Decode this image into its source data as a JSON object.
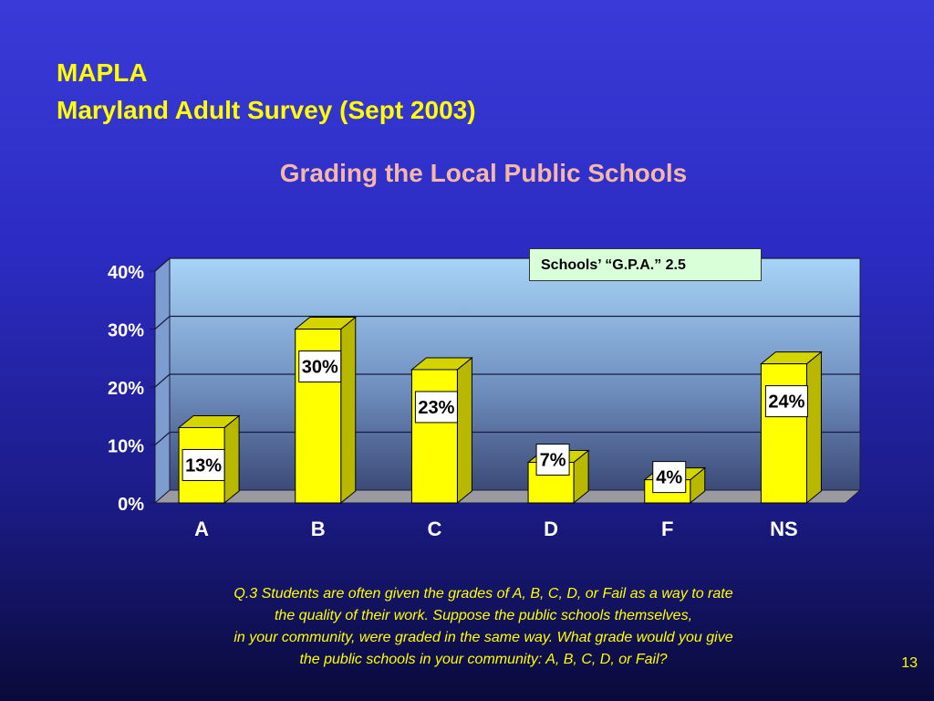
{
  "header": {
    "line1": "MAPLA",
    "line2": "Maryland Adult Survey (Sept 2003)"
  },
  "annotation": "Schools’ “G.P.A.” 2.5",
  "question_lines": [
    "Q.3  Students are often given the grades of A, B, C, D, or Fail as a way to rate",
    "the quality of their work.  Suppose the public schools themselves,",
    "in your community, were graded in the same way.  What grade would you give",
    "the public schools in your community: A, B, C, D, or Fail?"
  ],
  "page_number": "13",
  "colors": {
    "title": "#ffff00",
    "chart_title": "#f4b8a8",
    "bar_front": "#ffff00",
    "bar_side": "#b8b800",
    "bar_top": "#d4d400"
  },
  "chart_data": {
    "type": "bar",
    "title": "Grading the Local Public Schools",
    "categories": [
      "A",
      "B",
      "C",
      "D",
      "F",
      "NS"
    ],
    "values": [
      13,
      30,
      23,
      7,
      4,
      24
    ],
    "value_labels": [
      "13%",
      "30%",
      "23%",
      "7%",
      "4%",
      "24%"
    ],
    "yticks": [
      "0%",
      "10%",
      "20%",
      "30%",
      "40%"
    ],
    "ylim": [
      0,
      40
    ],
    "xlabel": "",
    "ylabel": "",
    "grid": true
  }
}
